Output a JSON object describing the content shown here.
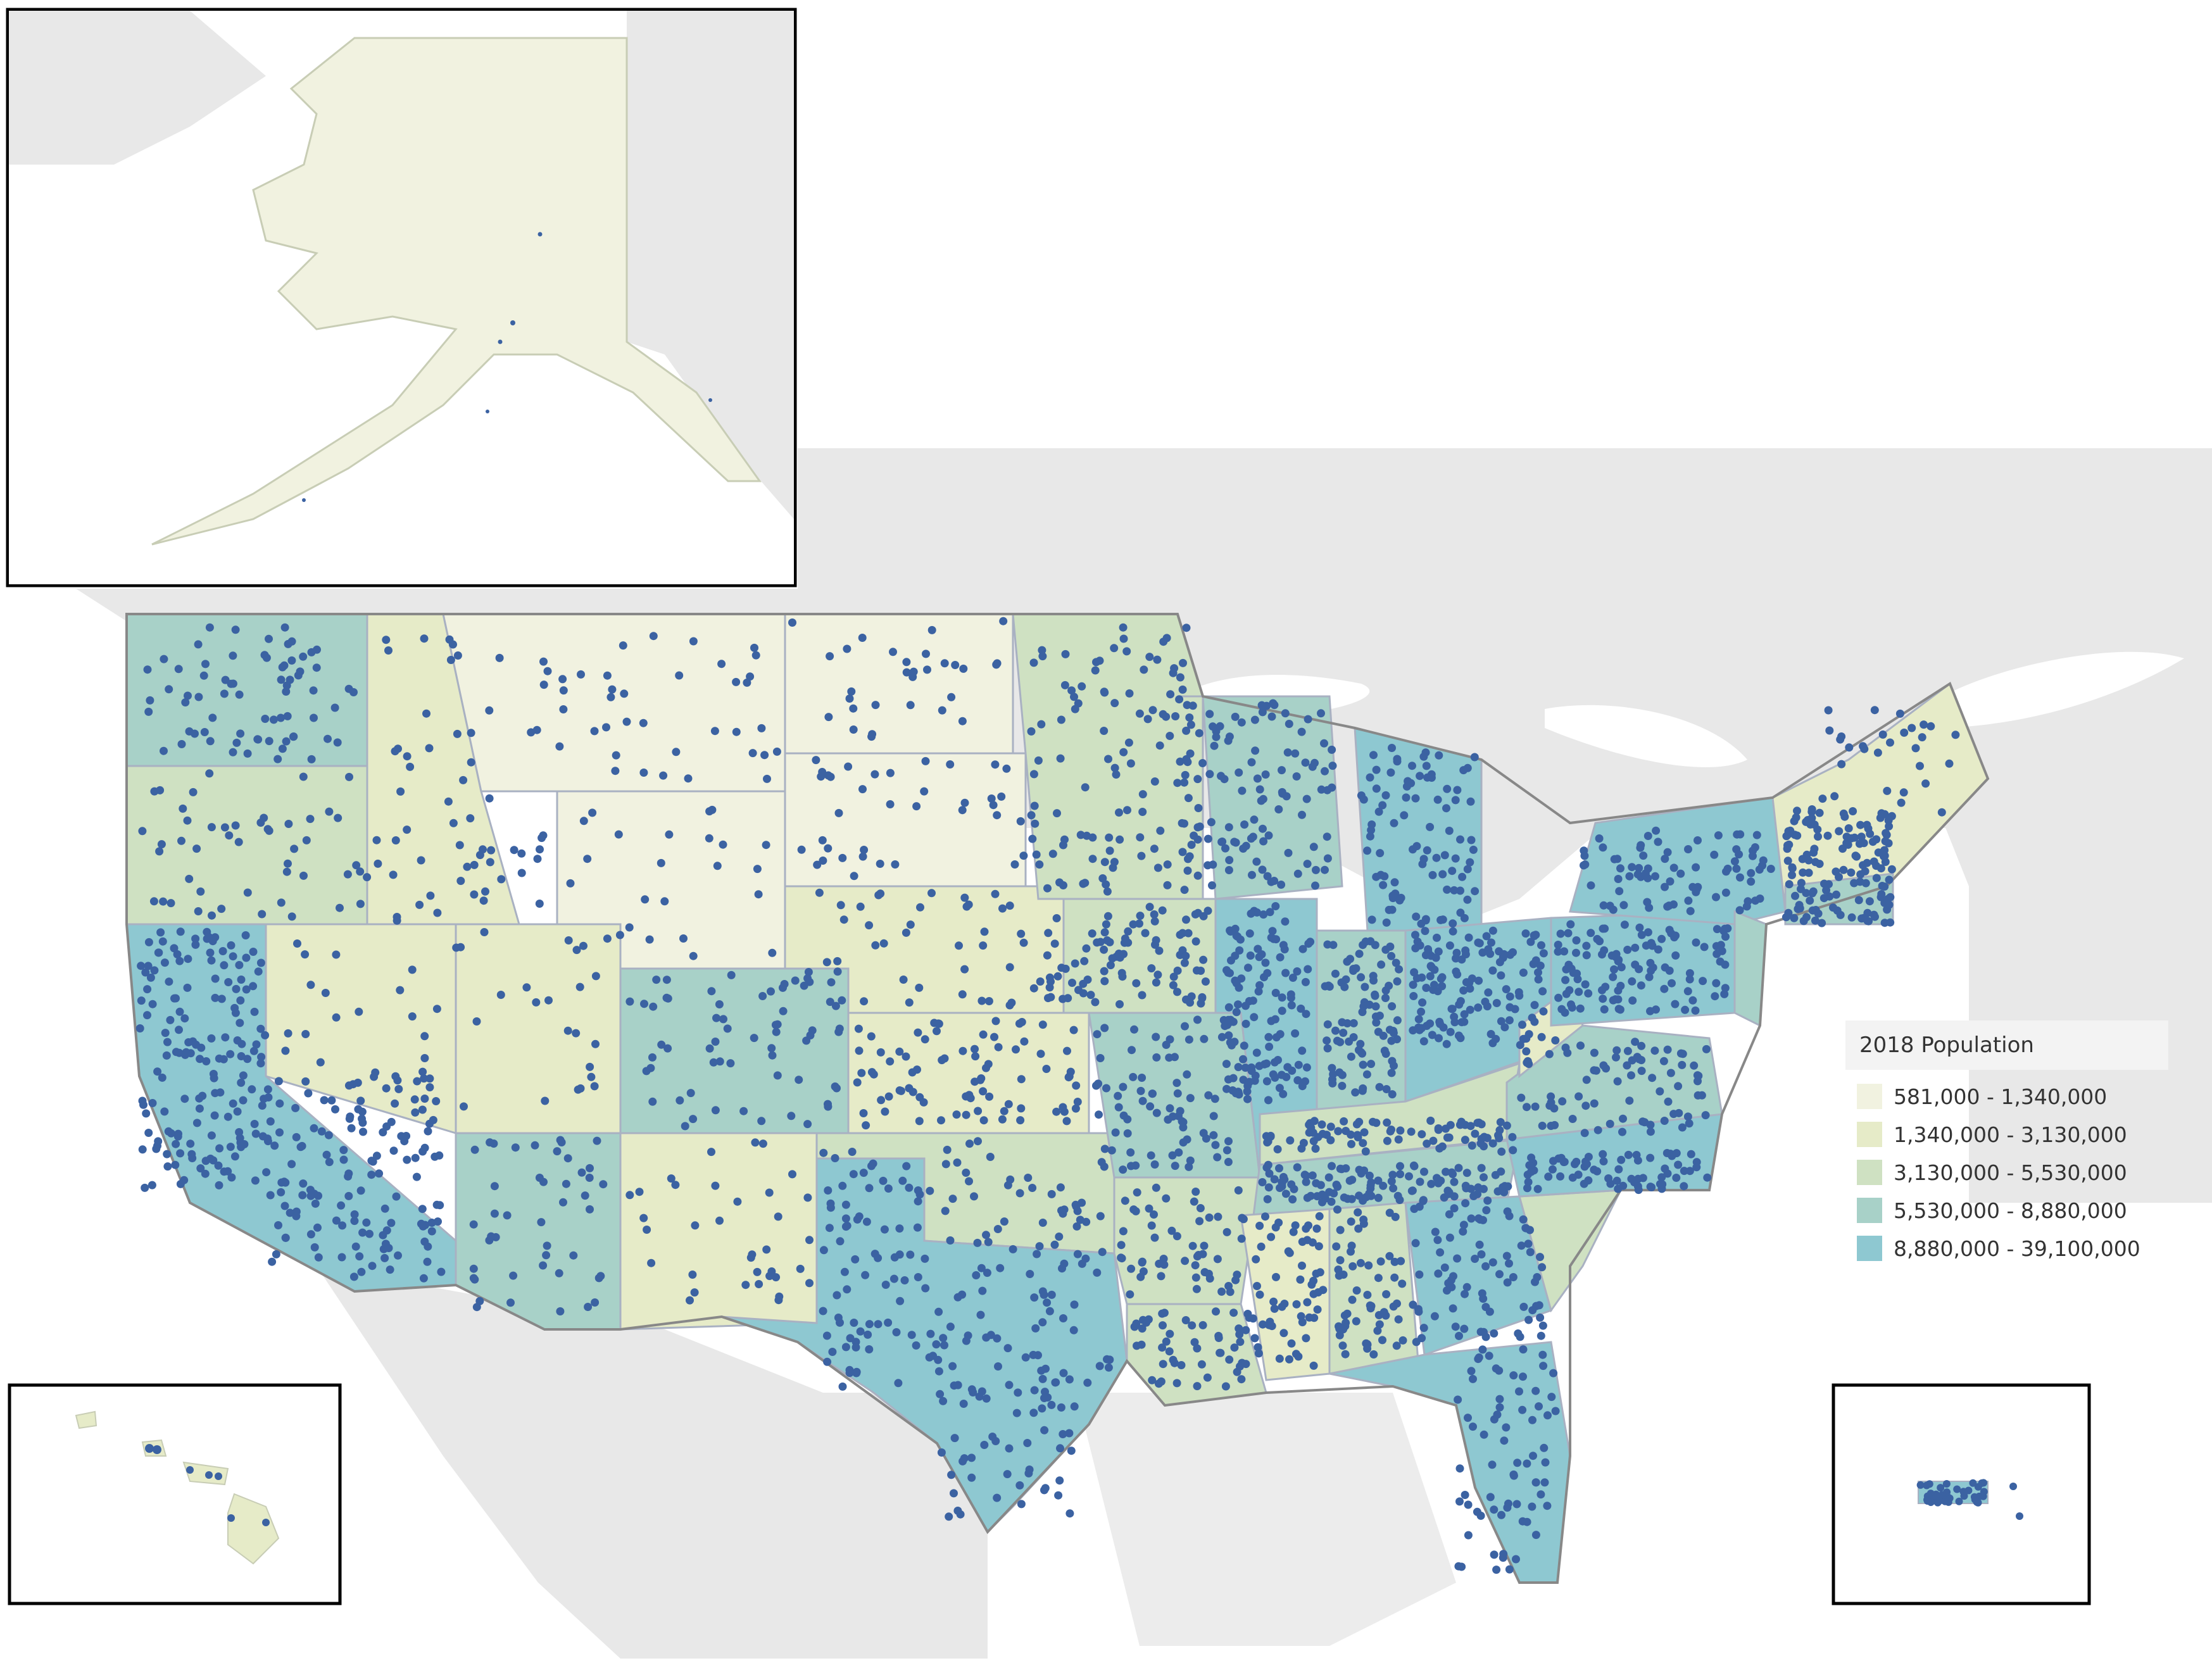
{
  "legend": {
    "title": "2018 Population",
    "items": [
      {
        "label": "581,000 - 1,340,000",
        "color": "#f1f2e0"
      },
      {
        "label": "1,340,000 - 3,130,000",
        "color": "#e6ebc8"
      },
      {
        "label": "3,130,000 - 5,530,000",
        "color": "#cfe1c2"
      },
      {
        "label": "5,530,000 - 8,880,000",
        "color": "#a8d1c8"
      },
      {
        "label": "8,880,000 - 39,100,000",
        "color": "#8ec8d1"
      }
    ]
  },
  "colors": {
    "ocean": "#ffffff",
    "foreign_land": "#e8e8e8",
    "state_border": "#a9b1c2",
    "dot": "#3b62a2",
    "inset_frame": "#000000"
  },
  "insets": [
    "Alaska",
    "Hawaii",
    "Puerto Rico"
  ]
}
